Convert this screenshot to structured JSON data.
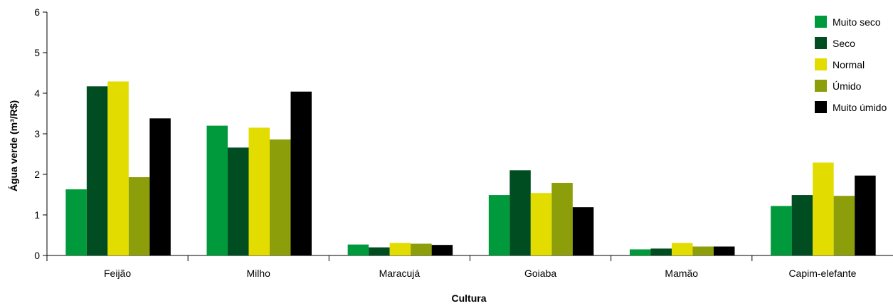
{
  "chart_data": {
    "type": "bar",
    "title": "",
    "xlabel": "Cultura",
    "ylabel": "Água verde (m³/R$)",
    "ylim": [
      0,
      6
    ],
    "yticks": [
      0,
      1,
      2,
      3,
      4,
      5,
      6
    ],
    "grid": false,
    "legend_position": "top-right",
    "categories": [
      "Feijão",
      "Milho",
      "Maracujá",
      "Goiaba",
      "Mamão",
      "Capim-elefante"
    ],
    "series": [
      {
        "name": "Muito seco",
        "color": "#009a3c",
        "values": [
          1.63,
          3.2,
          0.27,
          1.49,
          0.15,
          1.22
        ]
      },
      {
        "name": "Seco",
        "color": "#004d22",
        "values": [
          4.17,
          2.66,
          0.2,
          2.1,
          0.17,
          1.49
        ]
      },
      {
        "name": "Normal",
        "color": "#e2dc00",
        "values": [
          4.29,
          3.15,
          0.31,
          1.54,
          0.31,
          2.29
        ]
      },
      {
        "name": "Úmido",
        "color": "#8c9e0a",
        "values": [
          1.93,
          2.86,
          0.29,
          1.79,
          0.22,
          1.47
        ]
      },
      {
        "name": "Muito úmido",
        "color": "#000000",
        "values": [
          3.38,
          4.04,
          0.26,
          1.19,
          0.22,
          1.97
        ]
      }
    ]
  }
}
